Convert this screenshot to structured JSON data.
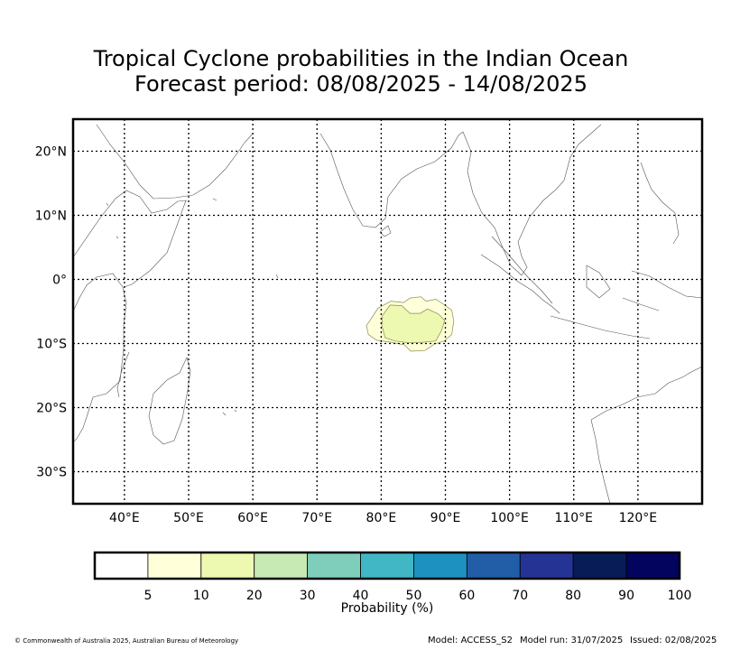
{
  "title": {
    "line1": "Tropical Cyclone probabilities in the Indian Ocean",
    "line2": "Forecast period: 08/08/2025 - 14/08/2025"
  },
  "map": {
    "lon_range": [
      32,
      130
    ],
    "lat_range": [
      -35,
      25
    ],
    "lon_ticks": [
      {
        "value": 40,
        "label": "40°E"
      },
      {
        "value": 50,
        "label": "50°E"
      },
      {
        "value": 60,
        "label": "60°E"
      },
      {
        "value": 70,
        "label": "70°E"
      },
      {
        "value": 80,
        "label": "80°E"
      },
      {
        "value": 90,
        "label": "90°E"
      },
      {
        "value": 100,
        "label": "100°E"
      },
      {
        "value": 110,
        "label": "110°E"
      },
      {
        "value": 120,
        "label": "120°E"
      }
    ],
    "lat_ticks": [
      {
        "value": 20,
        "label": "20°N"
      },
      {
        "value": 10,
        "label": "10°N"
      },
      {
        "value": 0,
        "label": "0°"
      },
      {
        "value": -10,
        "label": "10°S"
      },
      {
        "value": -20,
        "label": "20°S"
      },
      {
        "value": -30,
        "label": "30°S"
      }
    ],
    "probability_regions": [
      {
        "level": "5-10",
        "color": "#ffffd9",
        "points": [
          [
            78.2,
            -6.5
          ],
          [
            79.5,
            -4.5
          ],
          [
            81.5,
            -3.4
          ],
          [
            83.5,
            -3.6
          ],
          [
            84.5,
            -2.9
          ],
          [
            86.2,
            -2.7
          ],
          [
            87,
            -3.4
          ],
          [
            88.5,
            -3.1
          ],
          [
            89.6,
            -3.8
          ],
          [
            91,
            -4.8
          ],
          [
            91.3,
            -6.5
          ],
          [
            91,
            -8.6
          ],
          [
            89.8,
            -9.6
          ],
          [
            88.3,
            -10.1
          ],
          [
            86.8,
            -11.1
          ],
          [
            84.6,
            -11.2
          ],
          [
            83.6,
            -10.2
          ],
          [
            81.5,
            -9.8
          ],
          [
            79.3,
            -9.5
          ],
          [
            78,
            -8.6
          ],
          [
            77.7,
            -7.2
          ]
        ]
      },
      {
        "level": "10-20",
        "color": "#edf8b1",
        "points": [
          [
            80.2,
            -5.6
          ],
          [
            81.4,
            -4
          ],
          [
            83.2,
            -4.1
          ],
          [
            84.5,
            -5.3
          ],
          [
            86.1,
            -5.3
          ],
          [
            87.2,
            -4.6
          ],
          [
            88.9,
            -5.4
          ],
          [
            89.9,
            -6.4
          ],
          [
            89.4,
            -8
          ],
          [
            88.5,
            -9.6
          ],
          [
            86.5,
            -9.8
          ],
          [
            84.4,
            -9.9
          ],
          [
            82.1,
            -9.6
          ],
          [
            80.6,
            -9.1
          ],
          [
            80.1,
            -7.2
          ]
        ]
      }
    ]
  },
  "colorbar": {
    "label": "Probability (%)",
    "bins": [
      {
        "color": "#ffffff",
        "upper": "5"
      },
      {
        "color": "#ffffd9",
        "upper": "10"
      },
      {
        "color": "#edf8b1",
        "upper": "20"
      },
      {
        "color": "#c7e9b4",
        "upper": "30"
      },
      {
        "color": "#7fcdbb",
        "upper": "40"
      },
      {
        "color": "#41b6c4",
        "upper": "50"
      },
      {
        "color": "#1d91c0",
        "upper": "60"
      },
      {
        "color": "#225ea8",
        "upper": "70"
      },
      {
        "color": "#253494",
        "upper": "80"
      },
      {
        "color": "#081d58",
        "upper": "90"
      },
      {
        "color": "#03045e",
        "upper": "100"
      }
    ]
  },
  "footer": {
    "copyright": "© Commonwealth of Australia 2025, Australian Bureau of Meteorology",
    "model": "Model: ACCESS_S2",
    "model_run": "Model run: 31/07/2025",
    "issued": "Issued: 02/08/2025"
  }
}
